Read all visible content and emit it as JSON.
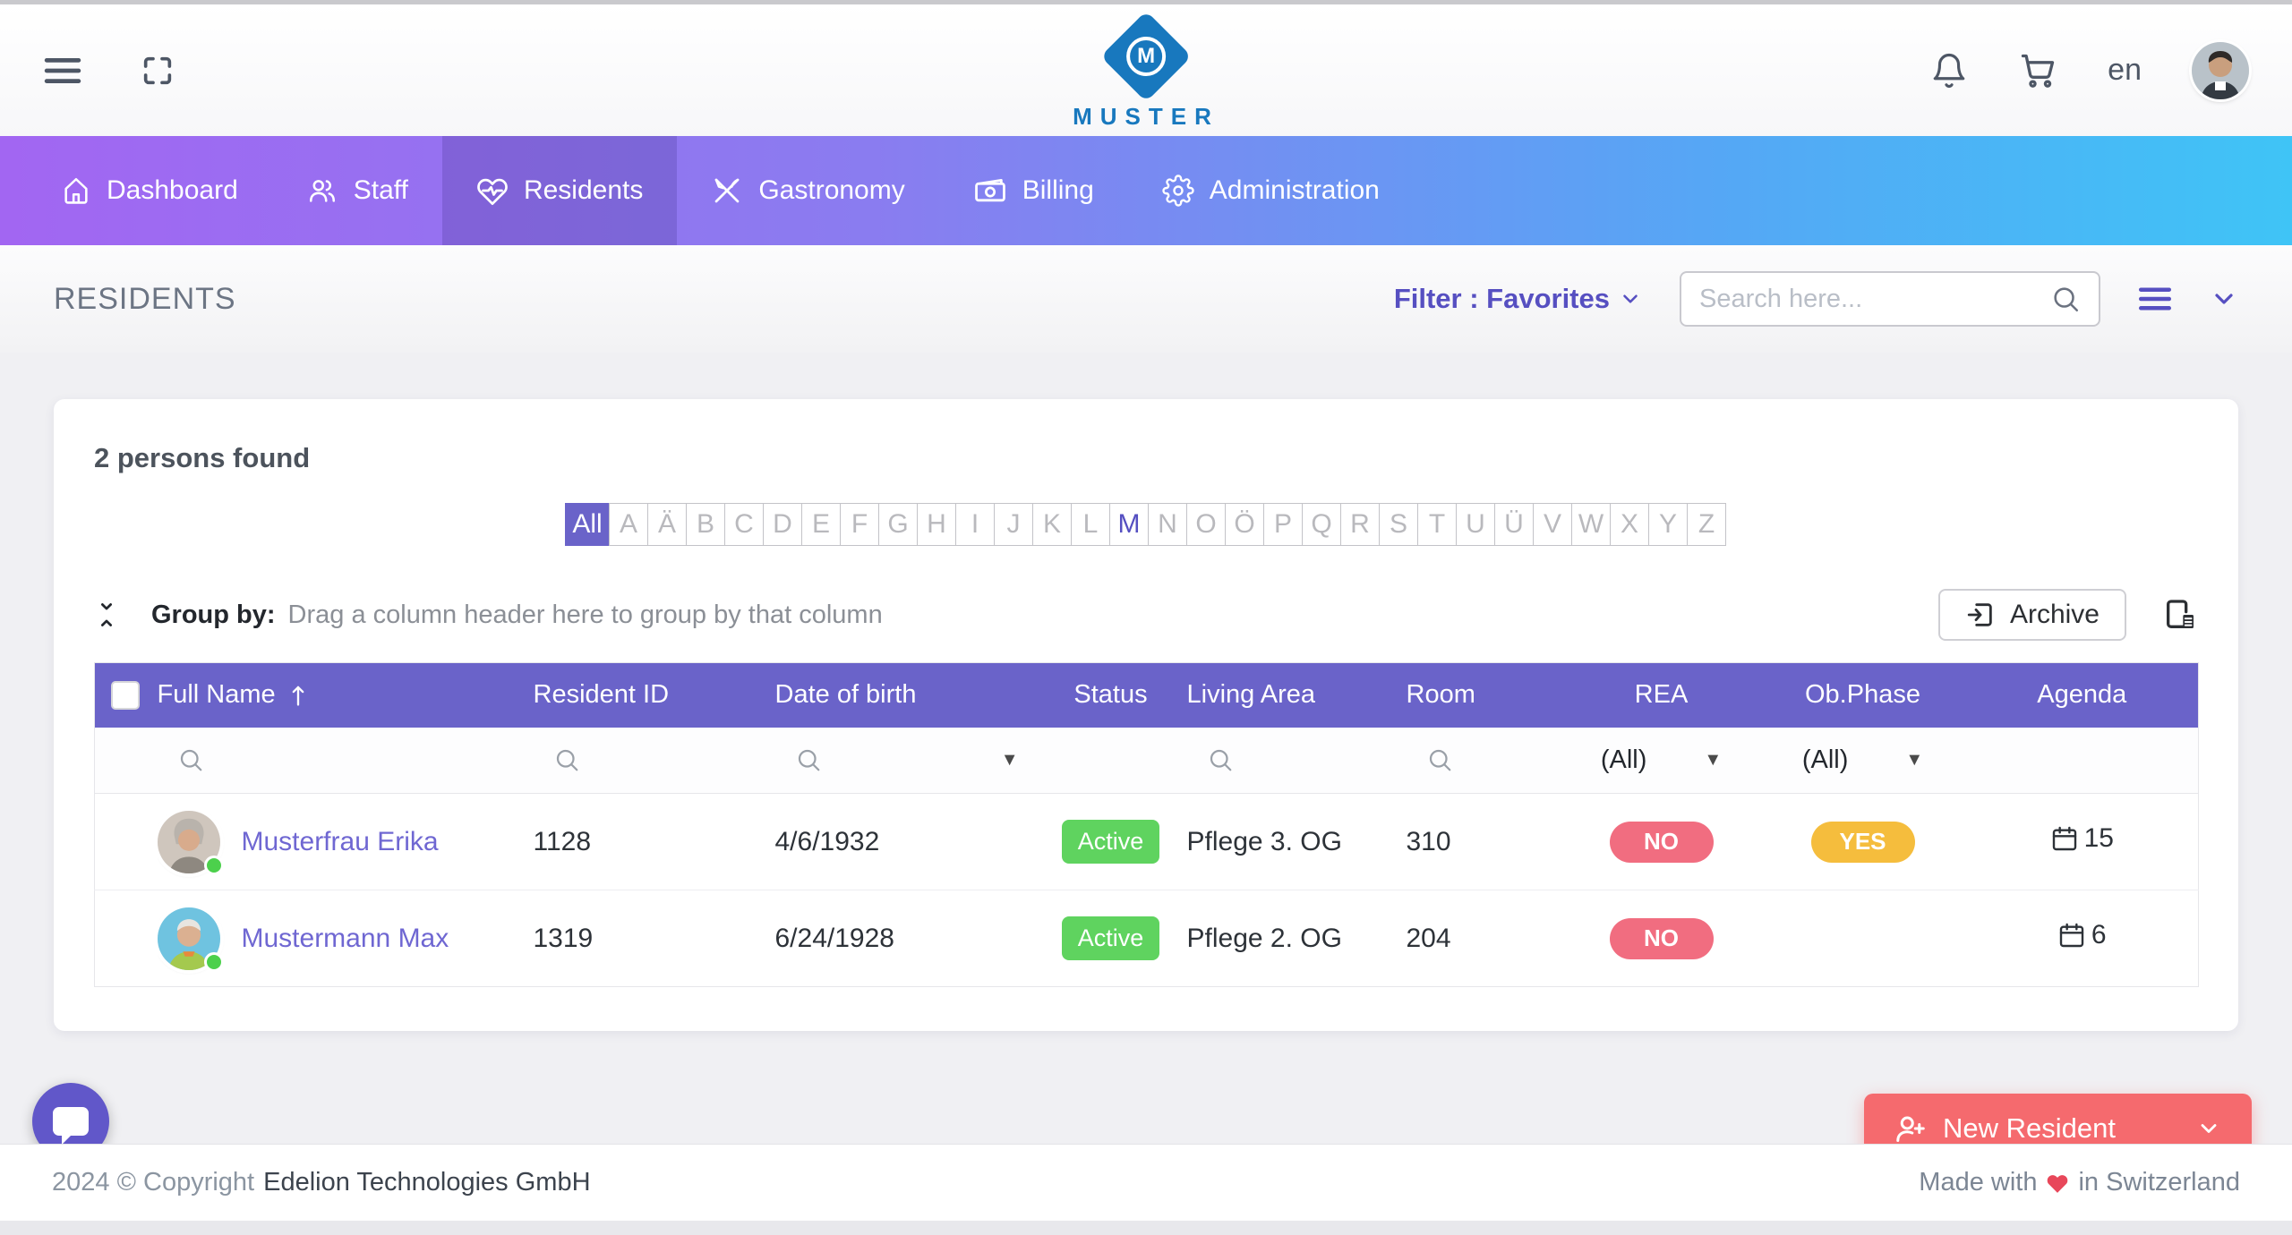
{
  "topbar": {
    "brand": "MUSTER",
    "logo_letter": "M",
    "language": "en"
  },
  "nav": {
    "items": [
      {
        "label": "Dashboard"
      },
      {
        "label": "Staff"
      },
      {
        "label": "Residents",
        "active": true
      },
      {
        "label": "Gastronomy"
      },
      {
        "label": "Billing"
      },
      {
        "label": "Administration"
      }
    ]
  },
  "page_header": {
    "title": "RESIDENTS",
    "filter_label": "Filter : Favorites",
    "search_placeholder": "Search here..."
  },
  "card": {
    "count_text": "2 persons found",
    "alphabet": {
      "all_label": "All",
      "selected": "All",
      "highlighted": "M",
      "letters": [
        "A",
        "Ä",
        "B",
        "C",
        "D",
        "E",
        "F",
        "G",
        "H",
        "I",
        "J",
        "K",
        "L",
        "M",
        "N",
        "O",
        "Ö",
        "P",
        "Q",
        "R",
        "S",
        "T",
        "U",
        "Ü",
        "V",
        "W",
        "X",
        "Y",
        "Z"
      ]
    },
    "group_by": {
      "label": "Group by:",
      "hint": "Drag a column header here to group by that column"
    },
    "archive_button": "Archive"
  },
  "table": {
    "columns": [
      "",
      "Full Name",
      "Resident ID",
      "Date of birth",
      "Status",
      "Living Area",
      "Room",
      "REA",
      "Ob.Phase",
      "Agenda"
    ],
    "filters": {
      "rea": "(All)",
      "ob_phase": "(All)"
    },
    "rows": [
      {
        "name": "Musterfrau Erika",
        "resident_id": "1128",
        "dob": "4/6/1932",
        "status": "Active",
        "living_area": "Pflege 3. OG",
        "room": "310",
        "rea": "NO",
        "ob_phase": "YES",
        "agenda": "15"
      },
      {
        "name": "Mustermann Max",
        "resident_id": "1319",
        "dob": "6/24/1928",
        "status": "Active",
        "living_area": "Pflege 2. OG",
        "room": "204",
        "rea": "NO",
        "ob_phase": "",
        "agenda": "6"
      }
    ]
  },
  "footer": {
    "copyright_prefix": "2024 © Copyright",
    "company": "Edelion Technologies GmbH",
    "new_resident_label": "New Resident",
    "made_with_prefix": "Made with",
    "made_with_suffix": "in Switzerland"
  },
  "colors": {
    "table_header": "#6a63c9",
    "accent_purple": "#564fc1",
    "link_purple": "#6f67d2",
    "active_green": "#5fd35f",
    "rea_no_red": "#f16d80",
    "obphase_yes_amber": "#f5bd3d",
    "new_resident_coral": "#f56a6e",
    "logo_blue": "#1878be"
  }
}
